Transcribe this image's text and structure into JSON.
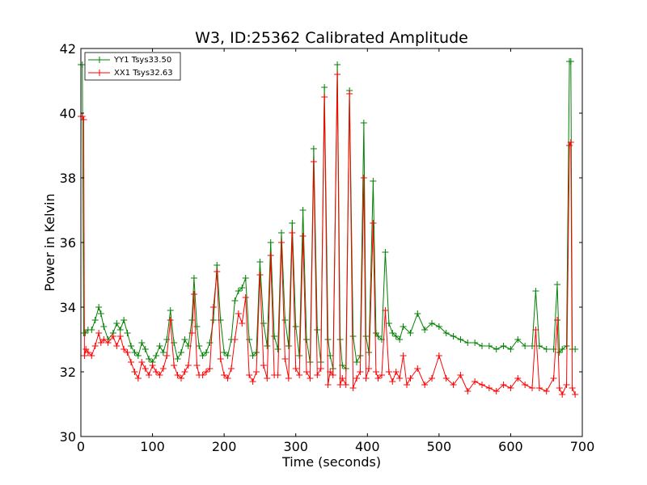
{
  "chart_data": {
    "type": "line",
    "title": "W3, ID:25362 Calibrated Amplitude",
    "xlabel": "Time (seconds)",
    "ylabel": "Power in Kelvin",
    "xlim": [
      0,
      700
    ],
    "ylim": [
      30,
      42
    ],
    "xticks": [
      "0",
      "100",
      "200",
      "300",
      "400",
      "500",
      "600",
      "700"
    ],
    "yticks": [
      "30",
      "32",
      "34",
      "36",
      "38",
      "40",
      "42"
    ],
    "grid": false,
    "legend_position": "top-left",
    "marker": "plus",
    "series": [
      {
        "name": "YY1 Tsys33.50",
        "color": "#008000",
        "x": [
          0,
          2,
          4,
          6,
          10,
          15,
          20,
          25,
          28,
          32,
          38,
          45,
          50,
          55,
          60,
          65,
          70,
          75,
          80,
          85,
          90,
          95,
          100,
          105,
          110,
          115,
          120,
          125,
          130,
          135,
          140,
          145,
          150,
          155,
          158,
          162,
          165,
          170,
          175,
          180,
          185,
          190,
          195,
          200,
          205,
          210,
          215,
          220,
          225,
          230,
          235,
          240,
          245,
          250,
          255,
          260,
          265,
          270,
          275,
          280,
          285,
          290,
          295,
          300,
          305,
          310,
          315,
          320,
          325,
          330,
          335,
          340,
          345,
          348,
          352,
          358,
          362,
          365,
          370,
          375,
          380,
          385,
          390,
          395,
          398,
          402,
          408,
          412,
          415,
          420,
          425,
          430,
          435,
          440,
          445,
          450,
          460,
          470,
          480,
          490,
          500,
          510,
          520,
          530,
          540,
          550,
          560,
          570,
          580,
          590,
          600,
          610,
          620,
          630,
          635,
          640,
          650,
          660,
          665,
          668,
          672,
          678,
          682,
          684,
          686,
          690
        ],
        "y": [
          41.5,
          41.5,
          33.2,
          33.2,
          33.3,
          33.3,
          33.6,
          34.0,
          33.8,
          33.4,
          33.0,
          33.2,
          33.5,
          33.3,
          33.6,
          33.2,
          32.8,
          32.6,
          32.5,
          32.9,
          32.7,
          32.4,
          32.3,
          32.5,
          32.8,
          32.6,
          33.0,
          33.9,
          32.9,
          32.4,
          32.6,
          33.0,
          32.8,
          33.6,
          34.9,
          33.4,
          32.8,
          32.5,
          32.6,
          32.9,
          33.6,
          35.3,
          33.6,
          32.6,
          32.5,
          33.0,
          34.2,
          34.5,
          34.6,
          34.9,
          33.0,
          32.5,
          32.6,
          35.4,
          33.5,
          32.8,
          36.0,
          33.1,
          32.7,
          36.3,
          33.6,
          32.8,
          36.6,
          33.4,
          32.5,
          37.0,
          33.0,
          32.3,
          38.9,
          33.3,
          32.3,
          40.8,
          33.0,
          32.5,
          32.1,
          41.5,
          33.0,
          32.2,
          32.1,
          40.7,
          33.1,
          32.3,
          32.5,
          39.7,
          33.1,
          32.6,
          37.9,
          33.2,
          33.1,
          33.0,
          35.7,
          33.5,
          33.2,
          33.1,
          33.0,
          33.4,
          33.2,
          33.8,
          33.3,
          33.5,
          33.4,
          33.2,
          33.1,
          33.0,
          32.9,
          32.9,
          32.8,
          32.8,
          32.7,
          32.8,
          32.7,
          33.0,
          32.8,
          32.8,
          34.5,
          32.8,
          32.7,
          32.7,
          34.7,
          32.6,
          32.7,
          32.8,
          41.6,
          41.6,
          32.7,
          32.7
        ]
      },
      {
        "name": "XX1 Tsys32.63",
        "color": "#ff0000",
        "x": [
          0,
          2,
          4,
          5,
          7,
          10,
          15,
          20,
          25,
          28,
          32,
          38,
          45,
          50,
          55,
          60,
          65,
          70,
          75,
          80,
          85,
          90,
          95,
          100,
          105,
          110,
          115,
          120,
          125,
          130,
          135,
          140,
          145,
          150,
          155,
          158,
          162,
          165,
          170,
          175,
          180,
          185,
          190,
          195,
          200,
          205,
          210,
          215,
          220,
          225,
          230,
          235,
          240,
          245,
          250,
          255,
          260,
          265,
          270,
          275,
          280,
          285,
          290,
          295,
          300,
          305,
          310,
          315,
          320,
          325,
          330,
          335,
          340,
          345,
          348,
          352,
          358,
          362,
          365,
          370,
          375,
          380,
          385,
          390,
          395,
          398,
          402,
          408,
          412,
          415,
          420,
          425,
          430,
          435,
          440,
          445,
          450,
          455,
          460,
          470,
          480,
          490,
          500,
          510,
          520,
          530,
          540,
          550,
          560,
          570,
          580,
          590,
          600,
          610,
          620,
          630,
          635,
          640,
          650,
          660,
          665,
          668,
          672,
          678,
          682,
          684,
          686,
          690
        ],
        "y": [
          39.9,
          39.9,
          39.8,
          32.5,
          32.7,
          32.6,
          32.5,
          32.8,
          33.2,
          32.9,
          33.0,
          32.9,
          33.1,
          32.8,
          33.1,
          32.7,
          32.6,
          32.3,
          32.0,
          31.8,
          32.3,
          32.1,
          31.9,
          32.2,
          32.0,
          31.9,
          32.1,
          32.5,
          33.6,
          32.2,
          31.9,
          31.8,
          32.0,
          32.2,
          33.2,
          34.4,
          32.2,
          31.9,
          31.9,
          32.0,
          32.1,
          34.0,
          35.1,
          32.4,
          31.9,
          31.8,
          32.1,
          33.0,
          33.8,
          33.5,
          34.3,
          31.9,
          31.7,
          32.0,
          35.0,
          32.2,
          31.8,
          35.6,
          31.9,
          31.9,
          36.0,
          32.4,
          31.8,
          36.3,
          32.1,
          31.9,
          36.2,
          32.0,
          31.8,
          38.5,
          31.9,
          32.1,
          40.5,
          31.6,
          32.0,
          31.9,
          41.2,
          31.6,
          31.8,
          31.6,
          40.6,
          31.5,
          31.8,
          32.0,
          38.0,
          31.8,
          32.1,
          36.6,
          32.0,
          31.8,
          31.9,
          33.9,
          32.0,
          31.7,
          32.0,
          31.8,
          32.5,
          31.6,
          31.8,
          32.1,
          31.6,
          31.8,
          32.5,
          31.8,
          31.6,
          31.9,
          31.4,
          31.7,
          31.6,
          31.5,
          31.4,
          31.6,
          31.5,
          31.8,
          31.6,
          31.5,
          33.3,
          31.5,
          31.4,
          31.8,
          33.6,
          31.5,
          31.3,
          31.6,
          39.0,
          39.1,
          31.5,
          31.3
        ]
      }
    ]
  }
}
